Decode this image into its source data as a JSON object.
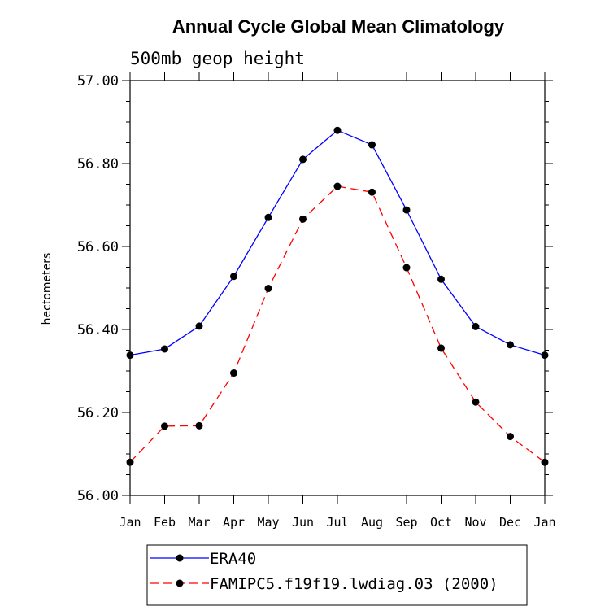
{
  "chart_data": {
    "type": "line",
    "title": "Annual Cycle Global Mean Climatology",
    "subtitle": "500mb geop height",
    "xlabel": "",
    "ylabel": "hectometers",
    "categories": [
      "Jan",
      "Feb",
      "Mar",
      "Apr",
      "May",
      "Jun",
      "Jul",
      "Aug",
      "Sep",
      "Oct",
      "Nov",
      "Dec",
      "Jan"
    ],
    "yticks": [
      "56.00",
      "56.20",
      "56.40",
      "56.60",
      "56.80",
      "57.00"
    ],
    "ylim": [
      56.0,
      57.0
    ],
    "grid": false,
    "legend_position": "bottom",
    "series": [
      {
        "name": "ERA40",
        "color": "#0000ff",
        "dash": "solid",
        "values": [
          56.338,
          56.353,
          56.408,
          56.528,
          56.67,
          56.81,
          56.88,
          56.845,
          56.688,
          56.521,
          56.407,
          56.363,
          56.338
        ]
      },
      {
        "name": "FAMIPC5.f19f19.lwdiag.03 (2000)",
        "color": "#ff0000",
        "dash": "dashed",
        "values": [
          56.08,
          56.167,
          56.168,
          56.295,
          56.499,
          56.666,
          56.745,
          56.731,
          56.549,
          56.355,
          56.225,
          56.142,
          56.08
        ]
      }
    ]
  }
}
